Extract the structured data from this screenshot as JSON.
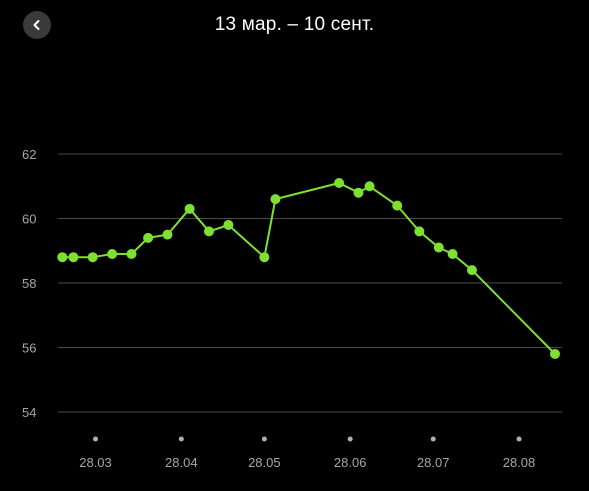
{
  "header": {
    "title": "13 мар. – 10 сент.",
    "back_icon": "chevron-left-icon"
  },
  "colors": {
    "background": "#000000",
    "line": "#7ee030",
    "grid": "#4a4a4a",
    "tick_text": "#a6a6a6",
    "back_button_bg": "#3a3a3a"
  },
  "chart_data": {
    "type": "line",
    "title": "13 мар. – 10 сент.",
    "xlabel": "",
    "ylabel": "",
    "x_type": "date",
    "xlim": [
      "2024-03-13",
      "2024-09-10"
    ],
    "ylim": [
      54,
      62
    ],
    "y_ticks": [
      62,
      60,
      58,
      56,
      54
    ],
    "x_ticks": [
      {
        "date": "2024-03-28",
        "label": "28.03"
      },
      {
        "date": "2024-04-28",
        "label": "28.04"
      },
      {
        "date": "2024-05-28",
        "label": "28.05"
      },
      {
        "date": "2024-06-28",
        "label": "28.06"
      },
      {
        "date": "2024-07-28",
        "label": "28.07"
      },
      {
        "date": "2024-08-28",
        "label": "28.08"
      }
    ],
    "grid": true,
    "legend": "none",
    "series": [
      {
        "points": [
          {
            "x": "2024-03-16",
            "y": 58.8
          },
          {
            "x": "2024-03-20",
            "y": 58.8
          },
          {
            "x": "2024-03-27",
            "y": 58.8
          },
          {
            "x": "2024-04-03",
            "y": 58.9
          },
          {
            "x": "2024-04-10",
            "y": 58.9
          },
          {
            "x": "2024-04-16",
            "y": 59.4
          },
          {
            "x": "2024-04-23",
            "y": 59.5
          },
          {
            "x": "2024-05-01",
            "y": 60.3
          },
          {
            "x": "2024-05-08",
            "y": 59.6
          },
          {
            "x": "2024-05-15",
            "y": 59.8
          },
          {
            "x": "2024-05-28",
            "y": 58.8
          },
          {
            "x": "2024-06-01",
            "y": 60.6
          },
          {
            "x": "2024-06-24",
            "y": 61.1
          },
          {
            "x": "2024-07-01",
            "y": 60.8
          },
          {
            "x": "2024-07-05",
            "y": 61.0
          },
          {
            "x": "2024-07-15",
            "y": 60.4
          },
          {
            "x": "2024-07-23",
            "y": 59.6
          },
          {
            "x": "2024-07-30",
            "y": 59.1
          },
          {
            "x": "2024-08-04",
            "y": 58.9
          },
          {
            "x": "2024-08-11",
            "y": 58.4
          },
          {
            "x": "2024-09-10",
            "y": 55.8
          }
        ]
      }
    ]
  }
}
